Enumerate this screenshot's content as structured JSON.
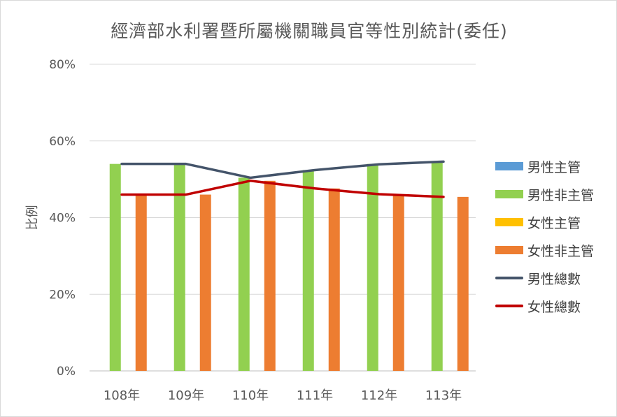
{
  "chart_data": {
    "type": "bar",
    "title": "經濟部水利署暨所屬機關職員官等性別統計(委任)",
    "xlabel": "",
    "ylabel": "比例",
    "ylim": [
      0,
      0.8
    ],
    "yticks": [
      0,
      0.2,
      0.4,
      0.6,
      0.8
    ],
    "ytick_labels": [
      "0%",
      "20%",
      "40%",
      "60%",
      "80%"
    ],
    "categories": [
      "108年",
      "109年",
      "110年",
      "111年",
      "112年",
      "113年"
    ],
    "grid": true,
    "legend_position": "right",
    "series": [
      {
        "name": "男性主管",
        "kind": "bar",
        "color": "#5b9bd5",
        "values": [
          0,
          0,
          0,
          0,
          0,
          0
        ]
      },
      {
        "name": "男性非主管",
        "kind": "bar",
        "color": "#92d050",
        "values": [
          0.54,
          0.54,
          0.504,
          0.524,
          0.54,
          0.546
        ]
      },
      {
        "name": "女性主管",
        "kind": "bar",
        "color": "#ffc000",
        "values": [
          0,
          0,
          0,
          0,
          0,
          0
        ]
      },
      {
        "name": "女性非主管",
        "kind": "bar",
        "color": "#ed7d31",
        "values": [
          0.46,
          0.46,
          0.496,
          0.476,
          0.46,
          0.454
        ]
      },
      {
        "name": "男性總數",
        "kind": "line",
        "color": "#44546a",
        "values": [
          0.54,
          0.54,
          0.504,
          0.524,
          0.539,
          0.546
        ]
      },
      {
        "name": "女性總數",
        "kind": "line",
        "color": "#c00000",
        "values": [
          0.46,
          0.46,
          0.496,
          0.476,
          0.461,
          0.454
        ]
      }
    ]
  }
}
